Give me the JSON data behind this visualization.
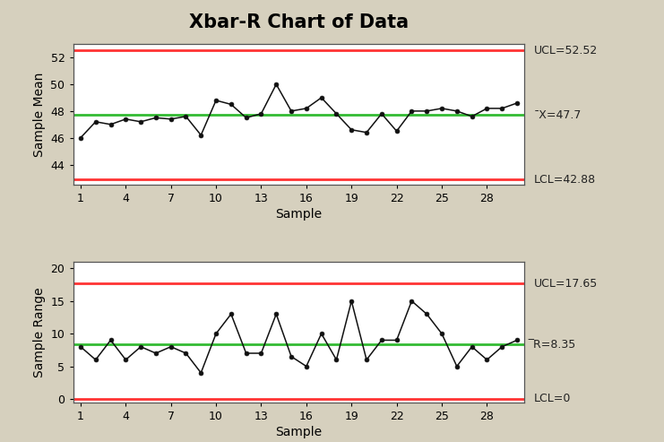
{
  "title": "Xbar-R Chart of Data",
  "background_color": "#d6d0be",
  "plot_background": "#ffffff",
  "xbar_data": [
    46.0,
    47.2,
    47.0,
    47.4,
    47.2,
    47.5,
    47.4,
    47.6,
    46.2,
    48.8,
    48.5,
    47.5,
    47.8,
    50.0,
    48.0,
    48.2,
    49.0,
    47.8,
    46.6,
    46.4,
    47.8,
    46.5,
    48.0,
    48.0,
    48.2,
    48.0,
    47.6,
    48.2,
    48.2,
    48.6
  ],
  "range_data": [
    8.0,
    6.0,
    9.0,
    6.0,
    8.0,
    7.0,
    8.0,
    7.0,
    4.0,
    10.0,
    13.0,
    7.0,
    7.0,
    13.0,
    6.5,
    5.0,
    10.0,
    6.0,
    15.0,
    6.0,
    9.0,
    9.0,
    15.0,
    13.0,
    10.0,
    5.0,
    8.0,
    6.0,
    8.0,
    9.0
  ],
  "xbar_ucl": 52.52,
  "xbar_cl": 47.7,
  "xbar_lcl": 42.88,
  "range_ucl": 17.65,
  "range_cl": 8.35,
  "range_lcl": 0,
  "ucl_color": "#ff3333",
  "cl_color": "#33bb33",
  "lcl_color": "#ff3333",
  "line_color": "#111111",
  "marker_color": "#111111",
  "xbar_ylabel": "Sample Mean",
  "range_ylabel": "Sample Range",
  "xlabel": "Sample",
  "xbar_ylim": [
    42.5,
    53.0
  ],
  "range_ylim": [
    -0.5,
    21.0
  ],
  "xbar_yticks": [
    44,
    46,
    48,
    50,
    52
  ],
  "range_yticks": [
    0,
    5,
    10,
    15,
    20
  ],
  "xticks": [
    1,
    4,
    7,
    10,
    13,
    16,
    19,
    22,
    25,
    28
  ],
  "n_points": 30,
  "title_fontsize": 15,
  "label_fontsize": 10,
  "tick_fontsize": 9,
  "annot_fontsize": 9,
  "xbar_annots": [
    {
      "text": "UCL=52.52",
      "yval": 52.52
    },
    {
      "text": "¯X=47.7",
      "yval": 47.7
    },
    {
      "text": "LCL=42.88",
      "yval": 42.88
    }
  ],
  "range_annots": [
    {
      "text": "UCL=17.65",
      "yval": 17.65
    },
    {
      "text": "̅R=8.35",
      "yval": 8.35
    },
    {
      "text": "LCL=0",
      "yval": 0
    }
  ]
}
